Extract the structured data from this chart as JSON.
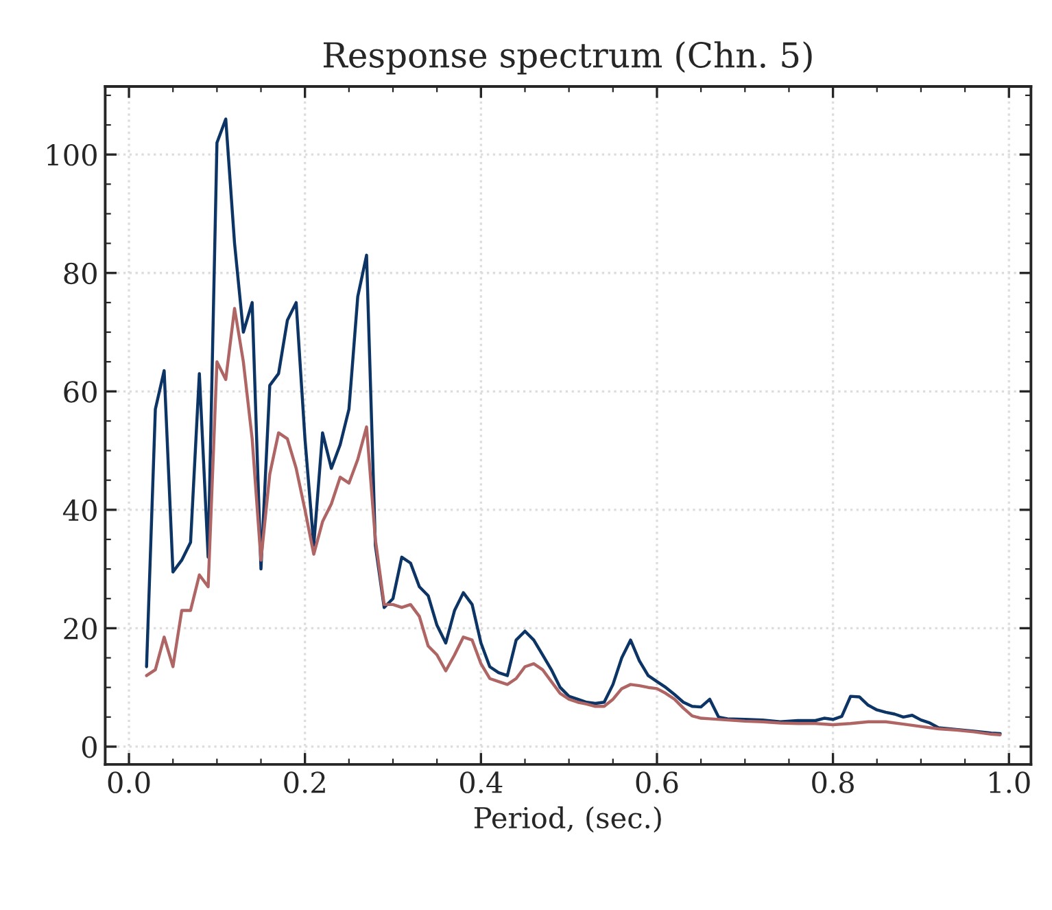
{
  "chart_data": {
    "type": "line",
    "title": "Response spectrum (Chn. 5)",
    "xlabel": "Period, (sec.)",
    "xlim": [
      -0.027,
      1.025
    ],
    "ylim": [
      -3,
      111.5
    ],
    "xticks": [
      {
        "value": 0.0,
        "label": "0.0"
      },
      0.2,
      0.4,
      0.6,
      0.8,
      {
        "value": 1.0,
        "label": "1.0"
      }
    ],
    "yticks": [
      0,
      20,
      40,
      60,
      80,
      100
    ],
    "grid": true,
    "marker": "none",
    "line_style": "solid",
    "series": [
      {
        "color": "#0c3465",
        "x": [
          0.02,
          0.03,
          0.04,
          0.05,
          0.06,
          0.07,
          0.08,
          0.09,
          0.1,
          0.11,
          0.12,
          0.13,
          0.14,
          0.15,
          0.16,
          0.17,
          0.18,
          0.19,
          0.2,
          0.21,
          0.22,
          0.23,
          0.24,
          0.25,
          0.26,
          0.27,
          0.28,
          0.29,
          0.3,
          0.31,
          0.32,
          0.33,
          0.34,
          0.35,
          0.36,
          0.37,
          0.38,
          0.39,
          0.4,
          0.41,
          0.42,
          0.43,
          0.44,
          0.45,
          0.46,
          0.47,
          0.48,
          0.49,
          0.5,
          0.51,
          0.52,
          0.53,
          0.54,
          0.55,
          0.56,
          0.57,
          0.58,
          0.59,
          0.6,
          0.61,
          0.62,
          0.63,
          0.64,
          0.65,
          0.66,
          0.67,
          0.68,
          0.7,
          0.72,
          0.74,
          0.76,
          0.78,
          0.79,
          0.8,
          0.81,
          0.82,
          0.83,
          0.84,
          0.85,
          0.86,
          0.87,
          0.88,
          0.89,
          0.9,
          0.91,
          0.92,
          0.94,
          0.96,
          0.98,
          0.99
        ],
        "values": [
          13.5,
          57,
          63.5,
          29.5,
          31.5,
          34.5,
          63,
          32,
          102,
          106,
          85,
          70,
          75,
          30,
          61,
          63,
          72,
          75,
          52,
          34,
          53,
          47,
          51,
          57,
          76,
          83,
          34,
          23.5,
          25,
          32,
          31,
          27,
          25.5,
          20.5,
          17.5,
          23,
          26,
          24,
          17.5,
          13.5,
          12.5,
          12,
          18,
          19.5,
          18,
          15.5,
          13,
          10,
          8.5,
          8,
          7.5,
          7.3,
          7.5,
          10.5,
          15,
          18,
          14.5,
          12,
          11,
          10,
          8.8,
          7.5,
          6.8,
          6.7,
          8,
          5,
          4.7,
          4.6,
          4.5,
          4.2,
          4.4,
          4.4,
          4.8,
          4.6,
          5.1,
          8.5,
          8.4,
          7,
          6.2,
          5.8,
          5.5,
          5,
          5.3,
          4.5,
          4,
          3.2,
          2.9,
          2.6,
          2.3,
          2.2
        ]
      },
      {
        "color": "#b06565",
        "x": [
          0.02,
          0.03,
          0.04,
          0.05,
          0.06,
          0.07,
          0.08,
          0.09,
          0.1,
          0.11,
          0.12,
          0.13,
          0.14,
          0.15,
          0.16,
          0.17,
          0.18,
          0.19,
          0.2,
          0.21,
          0.22,
          0.23,
          0.24,
          0.25,
          0.26,
          0.27,
          0.28,
          0.29,
          0.3,
          0.31,
          0.32,
          0.33,
          0.34,
          0.35,
          0.36,
          0.37,
          0.38,
          0.39,
          0.4,
          0.41,
          0.42,
          0.43,
          0.44,
          0.45,
          0.46,
          0.47,
          0.48,
          0.49,
          0.5,
          0.51,
          0.52,
          0.53,
          0.54,
          0.55,
          0.56,
          0.57,
          0.58,
          0.59,
          0.6,
          0.61,
          0.62,
          0.63,
          0.64,
          0.65,
          0.66,
          0.68,
          0.7,
          0.72,
          0.74,
          0.76,
          0.78,
          0.8,
          0.82,
          0.84,
          0.86,
          0.88,
          0.9,
          0.92,
          0.94,
          0.96,
          0.98,
          0.99
        ],
        "values": [
          12,
          13,
          18.5,
          13.5,
          23,
          23,
          29,
          27,
          65,
          62,
          74,
          65,
          52,
          31.5,
          46,
          53,
          52,
          47,
          40,
          32.5,
          38,
          41,
          45.5,
          44.5,
          48.5,
          54,
          35,
          24,
          24,
          23.5,
          24,
          22,
          17,
          15.5,
          12.8,
          15.5,
          18.5,
          18,
          14,
          11.5,
          11,
          10.5,
          11.5,
          13.5,
          14,
          13,
          11,
          9,
          8,
          7.5,
          7.2,
          6.8,
          6.8,
          8,
          9.8,
          10.5,
          10.3,
          10,
          9.8,
          9,
          8,
          6.5,
          5.2,
          4.8,
          4.7,
          4.5,
          4.3,
          4.2,
          4,
          3.9,
          3.9,
          3.7,
          3.9,
          4.2,
          4.2,
          3.8,
          3.4,
          3,
          2.8,
          2.5,
          2.1,
          2
        ]
      }
    ]
  }
}
